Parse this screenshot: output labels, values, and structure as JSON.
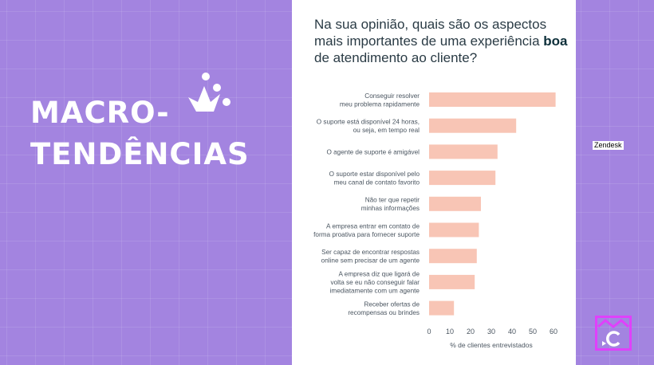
{
  "hero": {
    "line1": "MACRO-",
    "line2": "TENDÊNCIAS"
  },
  "card": {
    "title_part1": "Na sua opinião, quais são os aspectos mais importantes de uma experiência ",
    "title_bold": "boa",
    "title_part2": " de atendimento ao cliente?"
  },
  "badge": {
    "zendesk": "Zendesk"
  },
  "colors": {
    "background": "#a384e0",
    "bar": "#f8c5b5",
    "accent": "#ffffff"
  },
  "icons": {
    "crown": "crown-icon",
    "logo": "c-logo-icon"
  },
  "chart_data": {
    "type": "bar",
    "orientation": "horizontal",
    "categories": [
      [
        "Conseguir resolver",
        "meu problema rapidamente"
      ],
      [
        "O suporte está disponível 24 horas,",
        "ou seja, em tempo real"
      ],
      [
        "O agente de suporte é amigável"
      ],
      [
        "O suporte estar disponível pelo",
        "meu canal de contato favorito"
      ],
      [
        "Não ter que repetir",
        "minhas informações"
      ],
      [
        "A empresa entrar em contato de",
        "forma proativa para fornecer suporte"
      ],
      [
        "Ser capaz de encontrar respostas",
        "online sem precisar de um agente"
      ],
      [
        "A empresa diz que ligará de",
        "volta se eu não conseguir falar",
        "imediatamente com um agente"
      ],
      [
        "Receber ofertas de",
        "recompensas ou brindes"
      ]
    ],
    "values": [
      61,
      42,
      33,
      32,
      25,
      24,
      23,
      22,
      12
    ],
    "xlabel": "% de clientes entrevistados",
    "xlim": [
      0,
      60
    ],
    "xticks": [
      0,
      10,
      20,
      30,
      40,
      50,
      60
    ]
  }
}
